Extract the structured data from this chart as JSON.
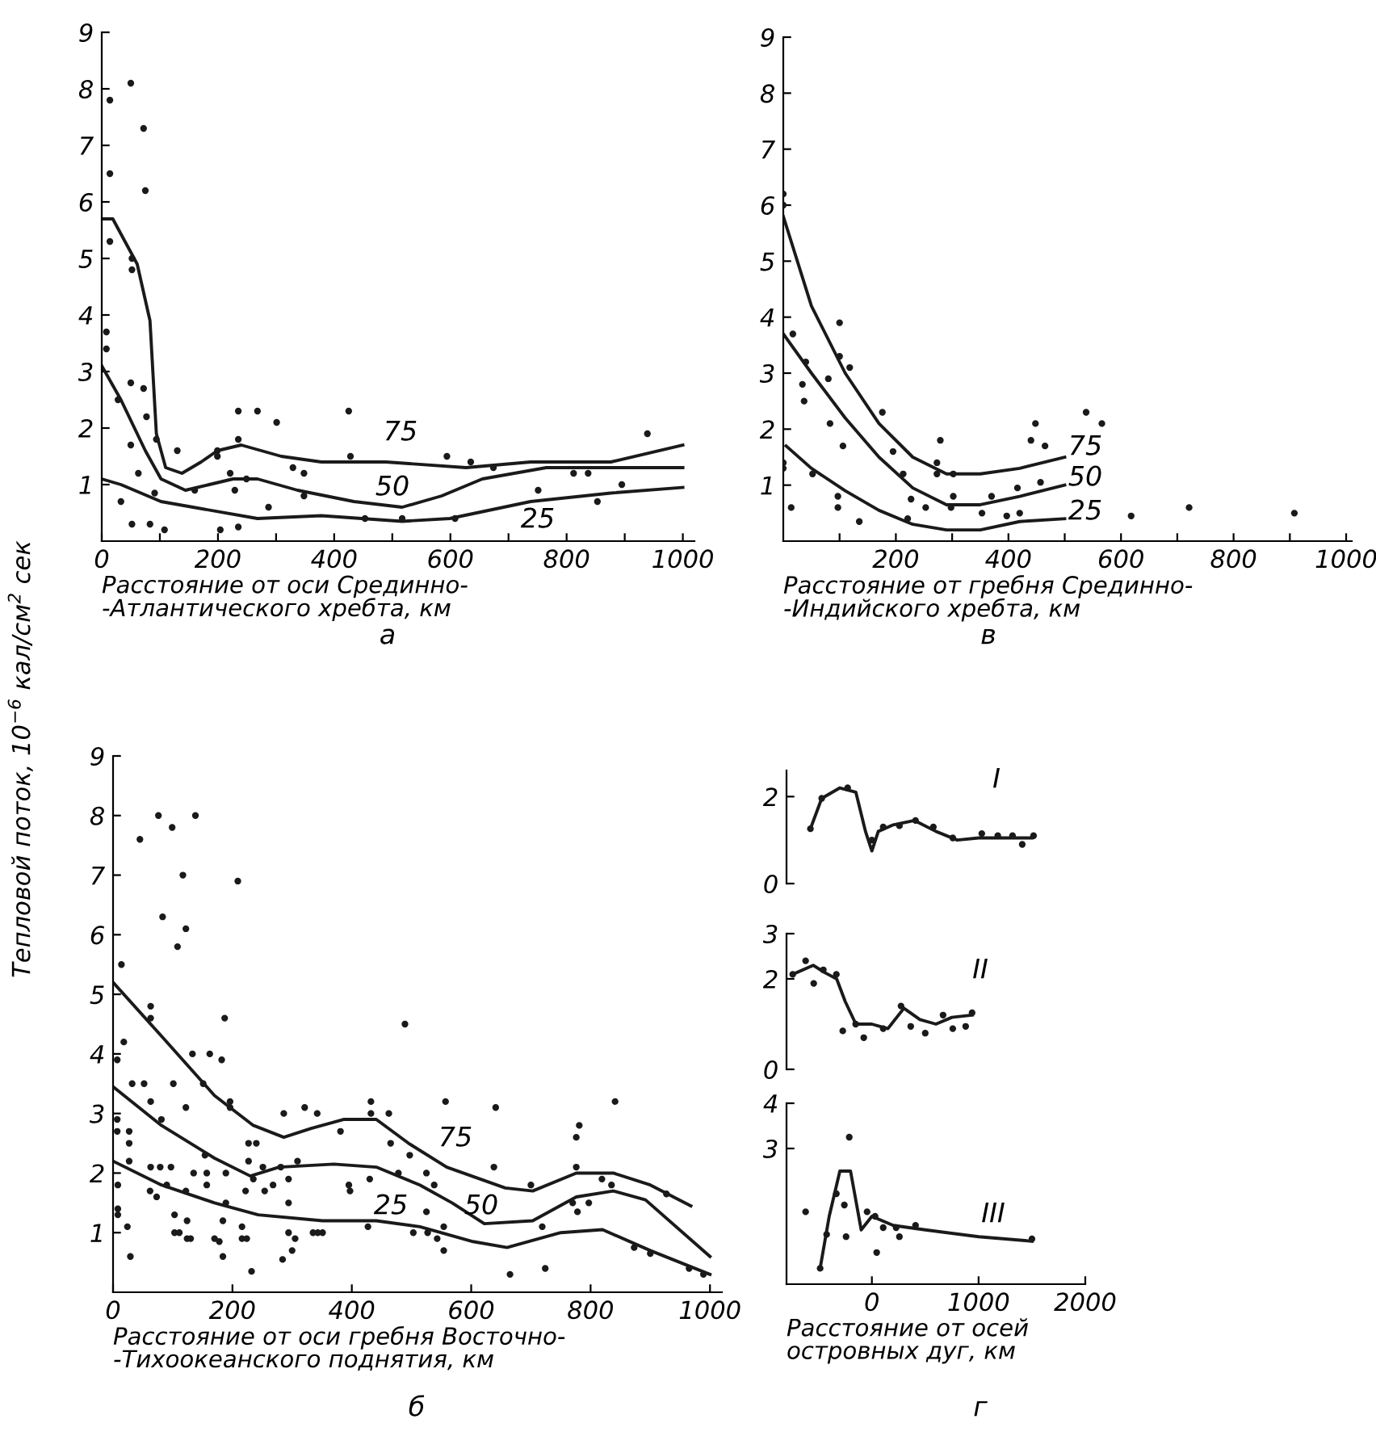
{
  "chart_data": [
    {
      "type": "scatter",
      "xlabel": "Расстояние от оси Срединно-\n-Атлантического хребта, км",
      "ylabel": "Тепловой поток, 10$^{−6}$ кал/см$^{2}$ сек",
      "xlim": [
        0,
        1020
      ],
      "ylim": [
        0,
        9
      ],
      "xticks": [
        0,
        {
          "value": 100,
          "label": null
        },
        200,
        {
          "value": 300,
          "label": null
        },
        400,
        {
          "value": 500,
          "label": null
        },
        600,
        {
          "value": 700,
          "label": null
        },
        800,
        {
          "value": 900,
          "label": null
        },
        1000
      ],
      "yticks": [
        1,
        2,
        3,
        4,
        5,
        6,
        7,
        8,
        9
      ],
      "grid": false,
      "annotations": [
        "а",
        "75",
        "50",
        "25"
      ],
      "series": [
        {
          "type": "scatter",
          "marker": "circle",
          "color": "#1a1a1a",
          "x": [
            14,
            14,
            50,
            72,
            75,
            14,
            52,
            52,
            8,
            8,
            28,
            50,
            72,
            77,
            94,
            50,
            63,
            91,
            130,
            160,
            199,
            199,
            235,
            268,
            301,
            235,
            221,
            249,
            229,
            329,
            348,
            287,
            348,
            425,
            428,
            594,
            635,
            674,
            939,
            812,
            837,
            751,
            853,
            895,
            453,
            517,
            608,
            33,
            52,
            83,
            108,
            204,
            235
          ],
          "values": [
            7.8,
            6.5,
            8.1,
            7.3,
            6.2,
            5.3,
            4.8,
            5.0,
            3.7,
            3.4,
            2.5,
            2.8,
            2.7,
            2.2,
            1.8,
            1.7,
            1.2,
            0.85,
            1.6,
            0.9,
            1.6,
            1.5,
            2.3,
            2.3,
            2.1,
            1.8,
            1.2,
            1.1,
            0.9,
            1.3,
            1.2,
            0.6,
            0.8,
            2.3,
            1.5,
            1.5,
            1.4,
            1.3,
            1.9,
            1.2,
            1.2,
            0.9,
            0.7,
            1.0,
            0.4,
            0.4,
            0.4,
            0.7,
            0.3,
            0.3,
            0.2,
            0.2,
            0.25
          ]
        },
        {
          "type": "line",
          "marker": "none",
          "line_style": "solid",
          "color": "#1a1a1a",
          "x": [
            0,
            19,
            61,
            83,
            94,
            110,
            138,
            171,
            199,
            240,
            309,
            378,
            489,
            627,
            738,
            876,
            1000
          ],
          "values": [
            5.7,
            5.7,
            4.9,
            3.9,
            1.9,
            1.3,
            1.2,
            1.4,
            1.6,
            1.7,
            1.5,
            1.4,
            1.4,
            1.3,
            1.4,
            1.4,
            1.7
          ]
        },
        {
          "type": "line",
          "marker": "none",
          "line_style": "solid",
          "color": "#1a1a1a",
          "x": [
            0,
            33,
            75,
            102,
            144,
            185,
            226,
            268,
            337,
            434,
            517,
            585,
            655,
            765,
            1000
          ],
          "values": [
            3.1,
            2.5,
            1.6,
            1.1,
            0.9,
            1.0,
            1.1,
            1.1,
            0.9,
            0.7,
            0.6,
            0.8,
            1.1,
            1.3,
            1.3
          ]
        },
        {
          "type": "line",
          "marker": "none",
          "line_style": "solid",
          "color": "#1a1a1a",
          "x": [
            0,
            33,
            102,
            157,
            268,
            378,
            517,
            599,
            738,
            876,
            1000
          ],
          "values": [
            1.1,
            1.0,
            0.7,
            0.6,
            0.4,
            0.45,
            0.35,
            0.4,
            0.7,
            0.85,
            0.95
          ]
        }
      ]
    },
    {
      "type": "scatter",
      "xlabel": "Расстояние от гребня Срединно-\n-Индийского хребта, км",
      "xlim": [
        0,
        1010
      ],
      "ylim": [
        0,
        9
      ],
      "xticks": [
        {
          "value": 100,
          "label": null
        },
        200,
        {
          "value": 300,
          "label": null
        },
        400,
        {
          "value": 500,
          "label": null
        },
        600,
        {
          "value": 700,
          "label": null
        },
        800,
        {
          "value": 900,
          "label": null
        },
        1000
      ],
      "yticks": [
        1,
        2,
        3,
        4,
        5,
        6,
        7,
        8,
        9
      ],
      "grid": false,
      "annotations": [
        "в",
        "75",
        "50",
        "25"
      ],
      "series": [
        {
          "type": "scatter",
          "marker": "circle",
          "color": "#1a1a1a",
          "x": [
            0,
            0,
            17,
            40,
            34,
            37,
            52,
            14,
            0,
            0,
            100,
            100,
            118,
            80,
            83,
            106,
            97,
            97,
            135,
            176,
            195,
            213,
            227,
            221,
            253,
            279,
            273,
            273,
            302,
            302,
            298,
            353,
            370,
            397,
            416,
            420,
            440,
            448,
            465,
            457,
            538,
            566,
            618,
            721,
            908
          ],
          "values": [
            6.2,
            6.0,
            3.7,
            3.2,
            2.8,
            2.5,
            1.2,
            0.6,
            1.4,
            1.3,
            3.9,
            3.3,
            3.1,
            2.9,
            2.1,
            1.7,
            0.8,
            0.6,
            0.35,
            2.3,
            1.6,
            1.2,
            0.75,
            0.4,
            0.6,
            1.8,
            1.4,
            1.2,
            1.2,
            0.8,
            0.6,
            0.5,
            0.8,
            0.45,
            0.95,
            0.5,
            1.8,
            2.1,
            1.7,
            1.05,
            2.3,
            2.1,
            0.45,
            0.6,
            0.5
          ]
        },
        {
          "type": "line",
          "marker": "none",
          "line_style": "solid",
          "color": "#1a1a1a",
          "x": [
            0,
            50,
            110,
            170,
            230,
            290,
            350,
            420,
            500
          ],
          "values": [
            5.8,
            4.2,
            3.0,
            2.1,
            1.5,
            1.2,
            1.2,
            1.3,
            1.5
          ]
        },
        {
          "type": "line",
          "marker": "none",
          "line_style": "solid",
          "color": "#1a1a1a",
          "x": [
            0,
            50,
            110,
            170,
            230,
            290,
            350,
            420,
            500
          ],
          "values": [
            3.7,
            3.0,
            2.2,
            1.5,
            0.95,
            0.65,
            0.65,
            0.8,
            1.0
          ]
        },
        {
          "type": "line",
          "marker": "none",
          "line_style": "solid",
          "color": "#1a1a1a",
          "x": [
            5,
            50,
            110,
            170,
            230,
            290,
            350,
            420,
            500
          ],
          "values": [
            1.7,
            1.3,
            0.9,
            0.55,
            0.3,
            0.2,
            0.2,
            0.35,
            0.4
          ]
        }
      ]
    },
    {
      "type": "scatter",
      "xlabel": "Расстояние от оси гребня Восточно-\n-Тихоокеанского поднятия, км",
      "xlim": [
        0,
        1020
      ],
      "ylim": [
        0,
        9
      ],
      "xticks": [
        0,
        200,
        400,
        600,
        800,
        1000
      ],
      "yticks": [
        1,
        2,
        3,
        4,
        5,
        6,
        7,
        8,
        9
      ],
      "grid": false,
      "annotations": [
        "б",
        "75",
        "25",
        "50"
      ],
      "series": [
        {
          "type": "scatter",
          "marker": "circle",
          "color": "#1a1a1a",
          "x": [
            76,
            99,
            138,
            45,
            117,
            209,
            83,
            122,
            108,
            14,
            63,
            63,
            187,
            489,
            18,
            7,
            133,
            162,
            182,
            151,
            101,
            32,
            52,
            63,
            196,
            122,
            196,
            286,
            321,
            342,
            432,
            557,
            432,
            462,
            381,
            7,
            7,
            27,
            27,
            81,
            227,
            240,
            154,
            281,
            309,
            251,
            227,
            27,
            63,
            79,
            97,
            135,
            157,
            8,
            62,
            73,
            90,
            122,
            157,
            189,
            189,
            222,
            235,
            254,
            268,
            294,
            294,
            395,
            397,
            430,
            478,
            497,
            465,
            525,
            538,
            525,
            554,
            503,
            8,
            8,
            24,
            103,
            124,
            103,
            124,
            170,
            216,
            216,
            184,
            294,
            335,
            351,
            427,
            527,
            641,
            841,
            781,
            776,
            638,
            700,
            776,
            819,
            835,
            927,
            770,
            797,
            778,
            719,
            29,
            111,
            130,
            178,
            224,
            184,
            232,
            284,
            300,
            305,
            343,
            543,
            554,
            665,
            724,
            873,
            900,
            965,
            989
          ],
          "values": [
            8.0,
            7.8,
            8.0,
            7.6,
            7.0,
            6.9,
            6.3,
            6.1,
            5.8,
            5.5,
            4.8,
            4.6,
            4.6,
            4.5,
            4.2,
            3.9,
            4.0,
            4.0,
            3.9,
            3.5,
            3.5,
            3.5,
            3.5,
            3.2,
            3.2,
            3.1,
            3.1,
            3.0,
            3.1,
            3.0,
            3.2,
            3.2,
            3.0,
            3.0,
            2.7,
            2.9,
            2.7,
            2.7,
            2.5,
            2.9,
            2.5,
            2.5,
            2.3,
            2.1,
            2.2,
            2.1,
            2.2,
            2.2,
            2.1,
            2.1,
            2.1,
            2.0,
            2.0,
            1.8,
            1.7,
            1.6,
            1.8,
            1.7,
            1.8,
            2.0,
            1.5,
            1.7,
            1.9,
            1.7,
            1.8,
            1.9,
            1.5,
            1.8,
            1.7,
            1.9,
            2.0,
            2.3,
            2.5,
            2.0,
            1.8,
            1.35,
            1.1,
            1.0,
            1.3,
            1.4,
            1.1,
            1.3,
            1.2,
            1.0,
            0.9,
            0.9,
            1.1,
            0.9,
            1.2,
            1.0,
            1.0,
            1.0,
            1.1,
            1.0,
            3.1,
            3.2,
            2.8,
            2.6,
            2.1,
            1.8,
            2.1,
            1.9,
            1.8,
            1.65,
            1.5,
            1.5,
            1.35,
            1.1,
            0.6,
            1.0,
            0.9,
            0.85,
            0.9,
            0.6,
            0.35,
            0.55,
            0.7,
            0.9,
            1.0,
            0.9,
            0.7,
            0.3,
            0.4,
            0.75,
            0.65,
            0.4,
            0.3
          ]
        },
        {
          "type": "line",
          "marker": "none",
          "line_style": "solid",
          "color": "#1a1a1a",
          "x": [
            0,
            81,
            170,
            235,
            286,
            332,
            386,
            441,
            495,
            559,
            657,
            703,
            776,
            838,
            900,
            968
          ],
          "values": [
            5.2,
            4.3,
            3.3,
            2.8,
            2.6,
            2.75,
            2.9,
            2.9,
            2.5,
            2.1,
            1.75,
            1.7,
            2.0,
            2.0,
            1.8,
            1.45
          ]
        },
        {
          "type": "line",
          "marker": "none",
          "line_style": "solid",
          "color": "#1a1a1a",
          "x": [
            0,
            81,
            170,
            230,
            278,
            370,
            441,
            514,
            568,
            622,
            703,
            776,
            838,
            892,
            1000
          ],
          "values": [
            3.45,
            2.8,
            2.25,
            1.95,
            2.1,
            2.15,
            2.1,
            1.8,
            1.5,
            1.15,
            1.2,
            1.6,
            1.7,
            1.55,
            0.6
          ]
        },
        {
          "type": "line",
          "marker": "none",
          "line_style": "solid",
          "color": "#1a1a1a",
          "x": [
            0,
            81,
            170,
            243,
            351,
            441,
            514,
            603,
            660,
            750,
            820,
            900,
            1000
          ],
          "values": [
            2.2,
            1.8,
            1.5,
            1.3,
            1.2,
            1.2,
            1.1,
            0.85,
            0.75,
            1.0,
            1.05,
            0.7,
            0.3
          ]
        }
      ]
    },
    {
      "type": "scatter",
      "xlim": [
        -800,
        2000
      ],
      "ylim": [
        0,
        2.6
      ],
      "xticks": [
        0,
        1000,
        2000
      ],
      "yticks": [
        0,
        2
      ],
      "tick_labels": "y",
      "grid": false,
      "annotations": [
        "I"
      ],
      "series": [
        {
          "type": "scatter",
          "marker": "circle",
          "color": "#1a1a1a",
          "x": [
            -576,
            -470,
            -227,
            0,
            106,
            258,
            409,
            576,
            758,
            1030,
            1180,
            1318,
            1409,
            1515
          ],
          "values": [
            1.26,
            1.96,
            2.2,
            1.0,
            1.3,
            1.33,
            1.45,
            1.3,
            1.05,
            1.15,
            1.1,
            1.1,
            0.9,
            1.1
          ]
        },
        {
          "type": "line",
          "marker": "none",
          "line_style": "solid",
          "color": "#1a1a1a",
          "x": [
            -576,
            -470,
            -300,
            -150,
            -60,
            0,
            60,
            200,
            400,
            600,
            800,
            1000,
            1500
          ],
          "values": [
            1.26,
            1.96,
            2.2,
            2.1,
            1.2,
            0.75,
            1.2,
            1.35,
            1.45,
            1.2,
            1.0,
            1.05,
            1.05
          ]
        }
      ]
    },
    {
      "type": "scatter",
      "xlim": [
        -800,
        2000
      ],
      "ylim": [
        0,
        3
      ],
      "xticks": [
        0,
        1000,
        2000
      ],
      "yticks": [
        0,
        2,
        3
      ],
      "tick_labels": "y",
      "grid": false,
      "annotations": [
        "II"
      ],
      "series": [
        {
          "type": "scatter",
          "marker": "circle",
          "color": "#1a1a1a",
          "x": [
            -742,
            -621,
            -545,
            -455,
            -333,
            -273,
            -152,
            -76,
            106,
            273,
            364,
            500,
            667,
            758,
            879,
            939
          ],
          "values": [
            2.1,
            2.4,
            1.9,
            2.2,
            2.1,
            0.85,
            1.0,
            0.7,
            0.9,
            1.4,
            0.95,
            0.8,
            1.2,
            0.9,
            0.95,
            1.25
          ]
        },
        {
          "type": "line",
          "marker": "none",
          "line_style": "solid",
          "color": "#1a1a1a",
          "x": [
            -742,
            -550,
            -450,
            -330,
            -250,
            -150,
            0,
            150,
            300,
            450,
            600,
            750,
            940
          ],
          "values": [
            2.1,
            2.3,
            2.15,
            2.0,
            1.5,
            1.0,
            1.0,
            0.9,
            1.35,
            1.1,
            1.0,
            1.15,
            1.2
          ]
        }
      ]
    },
    {
      "type": "scatter",
      "xlabel": "Расстояние от осей\nостровных дуг, км",
      "xlim": [
        -800,
        2000
      ],
      "ylim": [
        0,
        4
      ],
      "xticks": [
        0,
        1000,
        2000
      ],
      "yticks": [
        3,
        4
      ],
      "grid": false,
      "annotations": [
        "III",
        "г"
      ],
      "series": [
        {
          "type": "scatter",
          "marker": "circle",
          "color": "#1a1a1a",
          "x": [
            -212,
            -621,
            -424,
            -333,
            -258,
            -45,
            30,
            106,
            227,
            -485,
            -242,
            45,
            258,
            409,
            1500
          ],
          "values": [
            3.25,
            1.6,
            1.1,
            2.0,
            1.75,
            1.6,
            1.5,
            1.25,
            1.25,
            0.35,
            1.05,
            0.7,
            1.05,
            1.3,
            1.0
          ]
        },
        {
          "type": "line",
          "marker": "none",
          "line_style": "solid",
          "color": "#1a1a1a",
          "x": [
            -485,
            -400,
            -300,
            -200,
            -100,
            0,
            200,
            500,
            1000,
            1500
          ],
          "values": [
            0.35,
            1.5,
            2.5,
            2.5,
            1.2,
            1.5,
            1.3,
            1.2,
            1.05,
            0.95
          ]
        }
      ]
    }
  ]
}
